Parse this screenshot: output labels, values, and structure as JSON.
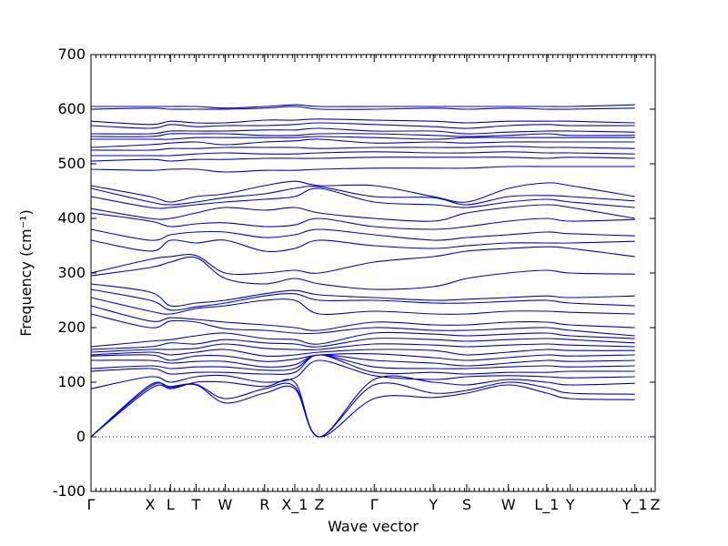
{
  "chart_data": {
    "type": "line",
    "title": "",
    "xlabel": "Wave vector",
    "ylabel": "Frequency (cm⁻¹)",
    "ylim": [
      -100,
      700
    ],
    "yticks": [
      -100,
      0,
      100,
      200,
      300,
      400,
      500,
      600,
      700
    ],
    "xlim": [
      0,
      10.3
    ],
    "xticks": [
      {
        "label": "Γ",
        "x": 0
      },
      {
        "label": "X",
        "x": 1.08
      },
      {
        "label": "L",
        "x": 1.45
      },
      {
        "label": "T",
        "x": 1.92
      },
      {
        "label": "W",
        "x": 2.45
      },
      {
        "label": "R",
        "x": 3.17
      },
      {
        "label": "X_1",
        "x": 3.72
      },
      {
        "label": "Z",
        "x": 4.17
      },
      {
        "label": "Γ",
        "x": 5.17
      },
      {
        "label": "Y",
        "x": 6.25
      },
      {
        "label": "S",
        "x": 6.86
      },
      {
        "label": "W",
        "x": 7.62
      },
      {
        "label": "L_1",
        "x": 8.32
      },
      {
        "label": "Y",
        "x": 8.75
      },
      {
        "label": "Y_1",
        "x": 9.93
      },
      {
        "label": "Z",
        "x": 10.3
      }
    ],
    "grid": false,
    "line_color": "#0000dd",
    "zero_line_color": "#0000dd",
    "series": [
      {
        "y": [
          0,
          88,
          90,
          95,
          62,
          80,
          88,
          0,
          70,
          72,
          80,
          95,
          80,
          70,
          68
        ]
      },
      {
        "y": [
          0,
          92,
          92,
          96,
          70,
          88,
          92,
          0,
          95,
          80,
          85,
          100,
          90,
          80,
          78
        ]
      },
      {
        "y": [
          0,
          95,
          88,
          100,
          100,
          92,
          100,
          0,
          105,
          100,
          95,
          105,
          100,
          95,
          98
        ]
      },
      {
        "y": [
          88,
          110,
          100,
          110,
          112,
          100,
          108,
          140,
          112,
          105,
          110,
          112,
          110,
          108,
          110
        ]
      },
      {
        "y": [
          120,
          125,
          115,
          118,
          118,
          115,
          118,
          150,
          118,
          118,
          115,
          118,
          118,
          120,
          120
        ]
      },
      {
        "y": [
          125,
          130,
          125,
          128,
          128,
          122,
          125,
          150,
          128,
          125,
          125,
          128,
          130,
          128,
          130
        ]
      },
      {
        "y": [
          140,
          140,
          135,
          138,
          138,
          128,
          132,
          150,
          140,
          135,
          130,
          135,
          140,
          138,
          140
        ]
      },
      {
        "y": [
          148,
          150,
          140,
          148,
          148,
          138,
          142,
          150,
          152,
          145,
          140,
          145,
          150,
          148,
          150
        ]
      },
      {
        "y": [
          150,
          155,
          150,
          155,
          160,
          148,
          150,
          155,
          160,
          158,
          150,
          155,
          160,
          158,
          158
        ]
      },
      {
        "y": [
          155,
          160,
          160,
          162,
          170,
          162,
          160,
          160,
          170,
          168,
          165,
          168,
          170,
          168,
          165
        ]
      },
      {
        "y": [
          160,
          165,
          172,
          170,
          178,
          172,
          170,
          165,
          180,
          178,
          175,
          178,
          180,
          178,
          172
        ]
      },
      {
        "y": [
          165,
          175,
          178,
          185,
          190,
          180,
          178,
          170,
          190,
          188,
          185,
          188,
          190,
          185,
          180
        ]
      },
      {
        "y": [
          225,
          200,
          212,
          210,
          198,
          195,
          190,
          190,
          200,
          195,
          195,
          198,
          200,
          195,
          185
        ]
      },
      {
        "y": [
          240,
          212,
          218,
          215,
          210,
          205,
          200,
          195,
          210,
          205,
          205,
          210,
          210,
          205,
          200
        ]
      },
      {
        "y": [
          255,
          230,
          225,
          235,
          240,
          250,
          250,
          225,
          230,
          225,
          225,
          230,
          230,
          228,
          225
        ]
      },
      {
        "y": [
          270,
          250,
          232,
          238,
          245,
          258,
          262,
          250,
          250,
          245,
          245,
          248,
          250,
          245,
          240
        ]
      },
      {
        "y": [
          280,
          265,
          240,
          245,
          250,
          262,
          268,
          260,
          255,
          250,
          252,
          255,
          258,
          255,
          258
        ]
      },
      {
        "y": [
          295,
          310,
          320,
          328,
          290,
          280,
          290,
          280,
          270,
          275,
          290,
          300,
          305,
          300,
          298
        ]
      },
      {
        "y": [
          300,
          325,
          330,
          332,
          300,
          300,
          305,
          300,
          320,
          330,
          340,
          345,
          348,
          345,
          330
        ]
      },
      {
        "y": [
          360,
          340,
          360,
          355,
          360,
          340,
          345,
          360,
          350,
          345,
          350,
          355,
          355,
          355,
          358
        ]
      },
      {
        "y": [
          380,
          360,
          370,
          375,
          375,
          365,
          370,
          380,
          370,
          360,
          365,
          370,
          375,
          372,
          368
        ]
      },
      {
        "y": [
          410,
          395,
          385,
          390,
          392,
          385,
          388,
          400,
          385,
          380,
          385,
          395,
          400,
          395,
          398
        ]
      },
      {
        "y": [
          418,
          400,
          400,
          410,
          420,
          415,
          420,
          410,
          400,
          395,
          410,
          420,
          425,
          420,
          400
        ]
      },
      {
        "y": [
          440,
          420,
          420,
          425,
          430,
          435,
          440,
          455,
          430,
          425,
          420,
          430,
          435,
          430,
          420
        ]
      },
      {
        "y": [
          455,
          430,
          425,
          430,
          438,
          445,
          455,
          458,
          440,
          438,
          425,
          440,
          442,
          440,
          432
        ]
      },
      {
        "y": [
          460,
          440,
          430,
          440,
          445,
          460,
          468,
          460,
          460,
          440,
          430,
          455,
          465,
          460,
          440
        ]
      },
      {
        "y": [
          490,
          488,
          490,
          490,
          485,
          488,
          488,
          490,
          492,
          492,
          492,
          495,
          495,
          495,
          495
        ]
      },
      {
        "y": [
          505,
          508,
          505,
          508,
          508,
          510,
          510,
          510,
          512,
          512,
          512,
          512,
          510,
          512,
          510
        ]
      },
      {
        "y": [
          515,
          515,
          515,
          518,
          520,
          518,
          518,
          520,
          522,
          520,
          520,
          522,
          520,
          520,
          518
        ]
      },
      {
        "y": [
          525,
          525,
          528,
          528,
          530,
          530,
          530,
          528,
          530,
          530,
          530,
          532,
          530,
          530,
          528
        ]
      },
      {
        "y": [
          530,
          535,
          538,
          540,
          535,
          540,
          542,
          545,
          538,
          540,
          538,
          540,
          540,
          540,
          540
        ]
      },
      {
        "y": [
          545,
          545,
          545,
          548,
          548,
          548,
          548,
          550,
          548,
          545,
          548,
          548,
          548,
          548,
          548
        ]
      },
      {
        "y": [
          550,
          550,
          555,
          555,
          555,
          552,
          552,
          555,
          555,
          552,
          550,
          552,
          555,
          552,
          552
        ]
      },
      {
        "y": [
          555,
          555,
          560,
          560,
          560,
          562,
          562,
          565,
          560,
          560,
          555,
          558,
          560,
          560,
          558
        ]
      },
      {
        "y": [
          570,
          565,
          572,
          568,
          570,
          570,
          572,
          575,
          572,
          568,
          565,
          570,
          572,
          570,
          570
        ]
      },
      {
        "y": [
          578,
          572,
          578,
          575,
          575,
          580,
          580,
          582,
          580,
          578,
          575,
          578,
          578,
          578,
          575
        ]
      },
      {
        "y": [
          600,
          602,
          600,
          600,
          600,
          602,
          605,
          600,
          600,
          602,
          600,
          602,
          600,
          600,
          602
        ]
      },
      {
        "y": [
          605,
          605,
          605,
          605,
          602,
          605,
          608,
          605,
          605,
          605,
          605,
          605,
          605,
          605,
          608
        ]
      }
    ]
  }
}
